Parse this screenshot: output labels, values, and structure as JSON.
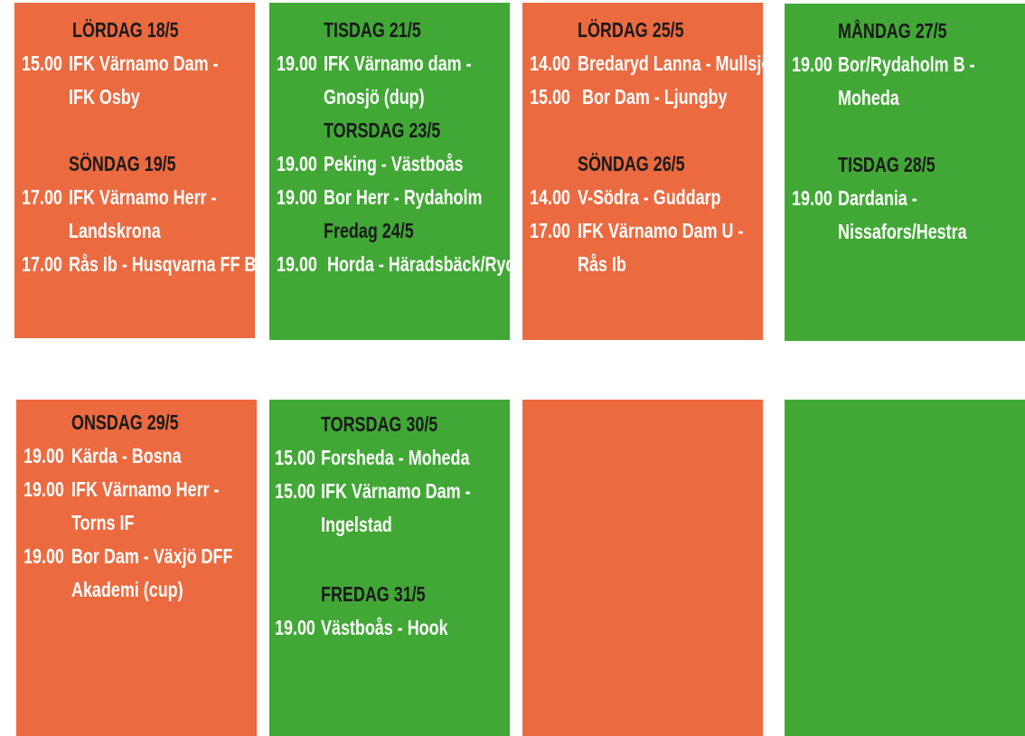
{
  "panels": [
    {
      "sections": [
        {
          "day": "LÖRDAG 18/5",
          "matches": [
            {
              "time": "15.00",
              "lines": [
                "IFK Värnamo Dam -",
                "IFK Osby"
              ]
            }
          ]
        },
        {
          "day": "SÖNDAG 19/5",
          "matches": [
            {
              "time": "17.00",
              "lines": [
                "IFK Värnamo Herr -",
                "Landskrona"
              ]
            },
            {
              "time": "17.00",
              "lines": [
                "Rås Ib - Husqvarna FF B"
              ]
            }
          ]
        }
      ]
    },
    {
      "sections": [
        {
          "day": "TISDAG 21/5",
          "matches": [
            {
              "time": "19.00",
              "lines": [
                "IFK Värnamo dam -",
                "Gnosjö (dup)"
              ]
            }
          ]
        },
        {
          "day": "TORSDAG 23/5",
          "matches": [
            {
              "time": "19.00",
              "lines": [
                "Peking - Västboås"
              ]
            },
            {
              "time": "19.00",
              "lines": [
                "Bor Herr - Rydaholm"
              ]
            }
          ]
        },
        {
          "day": "Fredag 24/5",
          "matches": [
            {
              "time": "19.00",
              "lines": [
                "Horda - Häradsbäck/Ryd"
              ]
            }
          ]
        }
      ]
    },
    {
      "sections": [
        {
          "day": "LÖRDAG 25/5",
          "matches": [
            {
              "time": "14.00",
              "lines": [
                "Bredaryd Lanna - Mullsjö"
              ]
            },
            {
              "time": "15.00",
              "lines": [
                "Bor Dam - Ljungby"
              ]
            }
          ]
        },
        {
          "day": "SÖNDAG 26/5",
          "matches": [
            {
              "time": "14.00",
              "lines": [
                "V-Södra - Guddarp"
              ]
            },
            {
              "time": "17.00",
              "lines": [
                "IFK Värnamo Dam U -",
                "Rås Ib"
              ]
            }
          ]
        }
      ]
    },
    {
      "sections": [
        {
          "day": "MÅNDAG 27/5",
          "matches": [
            {
              "time": "19.00",
              "lines": [
                "Bor/Rydaholm B -",
                "Moheda"
              ]
            }
          ]
        },
        {
          "day": "TISDAG 28/5",
          "matches": [
            {
              "time": "19.00",
              "lines": [
                "Dardania -",
                "Nissafors/Hestra"
              ]
            }
          ]
        }
      ]
    },
    {
      "sections": [
        {
          "day": "ONSDAG 29/5",
          "matches": [
            {
              "time": "19.00",
              "lines": [
                "Kärda - Bosna"
              ]
            },
            {
              "time": "19.00",
              "lines": [
                "IFK Värnamo Herr -",
                "Torns IF"
              ]
            },
            {
              "time": "19.00",
              "lines": [
                "Bor Dam - Växjö DFF",
                "Akademi (cup)"
              ]
            }
          ]
        }
      ]
    },
    {
      "sections": [
        {
          "day": "TORSDAG 30/5",
          "matches": [
            {
              "time": "15.00",
              "lines": [
                "Forsheda - Moheda"
              ]
            },
            {
              "time": "15.00",
              "lines": [
                "IFK Värnamo Dam -",
                "Ingelstad"
              ]
            }
          ]
        },
        {
          "day": "FREDAG 31/5",
          "matches": [
            {
              "time": "19.00",
              "lines": [
                "Västboås - Hook"
              ]
            }
          ]
        }
      ]
    },
    {
      "sections": []
    },
    {
      "sections": []
    }
  ]
}
